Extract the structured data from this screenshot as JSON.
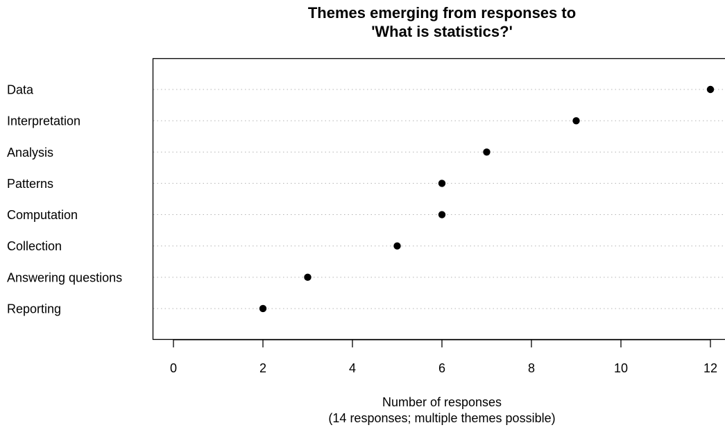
{
  "chart_data": {
    "type": "scatter",
    "title": [
      "Themes emerging from responses to",
      "'What is statistics?'"
    ],
    "xlabel": [
      "Number of responses",
      "(14 responses; multiple themes possible)"
    ],
    "ylabel": "",
    "xlim": [
      0,
      12
    ],
    "xticks": [
      0,
      2,
      4,
      6,
      8,
      10,
      12
    ],
    "categories": [
      "Data",
      "Interpretation",
      "Analysis",
      "Patterns",
      "Computation",
      "Collection",
      "Answering questions",
      "Reporting"
    ],
    "values": [
      12,
      9,
      7,
      6,
      6,
      5,
      3,
      2
    ],
    "grid": "dotted horizontal guide lines per category",
    "marker_color": "#000000"
  }
}
